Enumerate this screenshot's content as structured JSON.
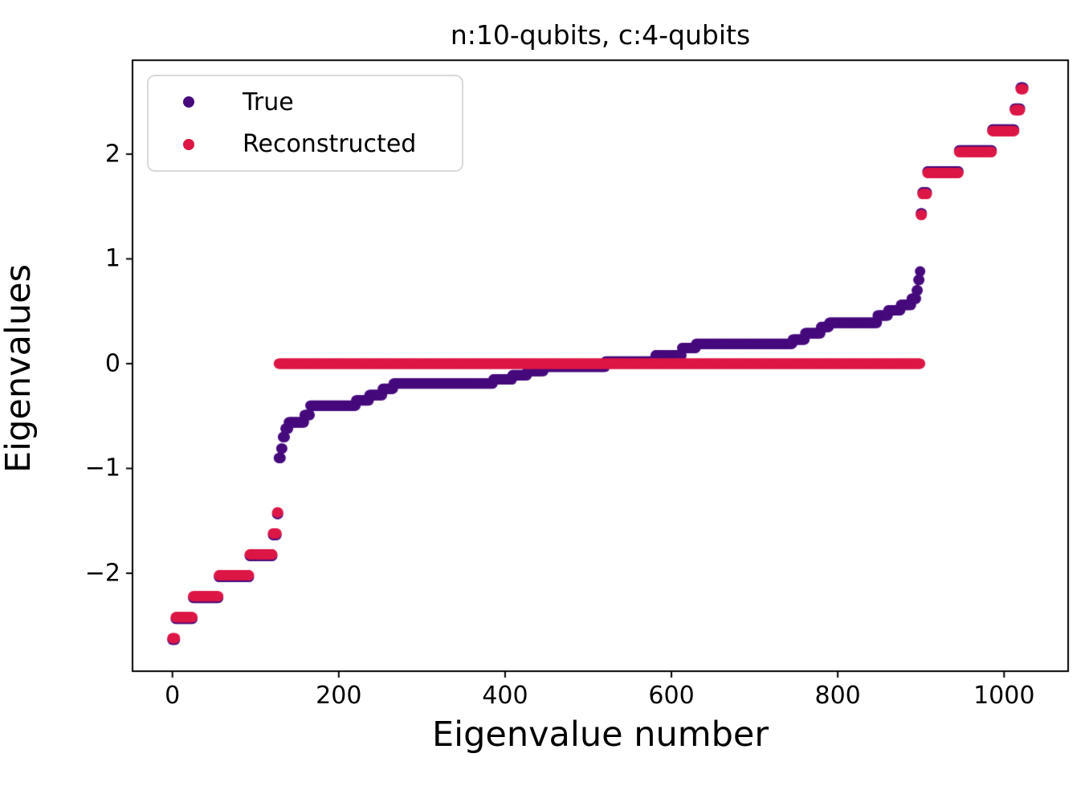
{
  "chart_data": {
    "type": "scatter",
    "title": "n:10-qubits, c:4-qubits",
    "xlabel": "Eigenvalue number",
    "ylabel": "Eigenvalues",
    "n_points": 1024,
    "xlim": [
      -48,
      1077
    ],
    "ylim": [
      -2.935,
      2.896
    ],
    "xticks": {
      "values": [
        0,
        200,
        400,
        600,
        800,
        1000
      ],
      "labels": [
        "0",
        "200",
        "400",
        "600",
        "800",
        "1000"
      ]
    },
    "yticks": {
      "values": [
        -2,
        -1,
        0,
        1,
        2
      ],
      "labels": [
        "−2",
        "−1",
        "0",
        "1",
        "2"
      ]
    },
    "grid": false,
    "legend_position": "upper-left",
    "marker_diameter_px": 13,
    "axis_color": "#000000",
    "legend_border_color": "#d9d9d9",
    "series": [
      {
        "name": "True",
        "color": "#460a7d",
        "steps": [
          [
            0,
            3,
            -2.635
          ],
          [
            4,
            24,
            -2.435
          ],
          [
            25,
            55,
            -2.235
          ],
          [
            56,
            92,
            -2.035
          ],
          [
            93,
            120,
            -1.835
          ],
          [
            121,
            125,
            -1.635
          ],
          [
            126,
            127,
            -1.435
          ],
          [
            128,
            130,
            -0.9
          ],
          [
            131,
            132,
            -0.81
          ],
          [
            133,
            135,
            -0.7
          ],
          [
            136,
            139,
            -0.62
          ],
          [
            140,
            158,
            -0.56
          ],
          [
            159,
            165,
            -0.49
          ],
          [
            166,
            220,
            -0.4
          ],
          [
            221,
            236,
            -0.35
          ],
          [
            237,
            252,
            -0.3
          ],
          [
            253,
            265,
            -0.24
          ],
          [
            266,
            385,
            -0.19
          ],
          [
            386,
            408,
            -0.15
          ],
          [
            409,
            426,
            -0.11
          ],
          [
            427,
            446,
            -0.07
          ],
          [
            447,
            520,
            -0.03
          ],
          [
            521,
            580,
            0.02
          ],
          [
            581,
            612,
            0.08
          ],
          [
            613,
            629,
            0.15
          ],
          [
            630,
            745,
            0.19
          ],
          [
            746,
            760,
            0.23
          ],
          [
            761,
            779,
            0.29
          ],
          [
            780,
            789,
            0.35
          ],
          [
            790,
            847,
            0.39
          ],
          [
            848,
            860,
            0.46
          ],
          [
            861,
            875,
            0.51
          ],
          [
            876,
            888,
            0.56
          ],
          [
            889,
            894,
            0.62
          ],
          [
            895,
            896,
            0.7
          ],
          [
            897,
            898,
            0.8
          ],
          [
            899,
            899,
            0.88
          ],
          [
            900,
            901,
            1.435
          ],
          [
            902,
            907,
            1.635
          ],
          [
            908,
            945,
            1.835
          ],
          [
            946,
            985,
            2.035
          ],
          [
            986,
            1012,
            2.235
          ],
          [
            1013,
            1019,
            2.435
          ],
          [
            1020,
            1023,
            2.635
          ]
        ]
      },
      {
        "name": "Reconstructed",
        "color": "#dc1746",
        "steps": [
          [
            0,
            3,
            -2.62
          ],
          [
            4,
            24,
            -2.42
          ],
          [
            25,
            55,
            -2.22
          ],
          [
            56,
            92,
            -2.02
          ],
          [
            93,
            120,
            -1.82
          ],
          [
            121,
            125,
            -1.62
          ],
          [
            126,
            127,
            -1.42
          ],
          [
            128,
            899,
            0.0
          ],
          [
            900,
            901,
            1.42
          ],
          [
            902,
            907,
            1.62
          ],
          [
            908,
            945,
            1.82
          ],
          [
            946,
            985,
            2.02
          ],
          [
            986,
            1012,
            2.22
          ],
          [
            1013,
            1019,
            2.42
          ],
          [
            1020,
            1023,
            2.62
          ]
        ]
      }
    ]
  }
}
